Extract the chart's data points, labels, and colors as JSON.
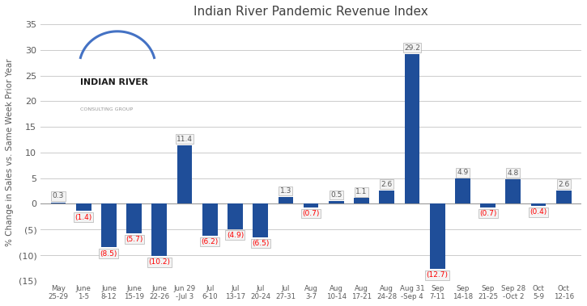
{
  "title": "Indian River Pandemic Revenue Index",
  "ylabel": "% Change in Sales vs. Same Week Prior Year",
  "categories": [
    "May\n25-29",
    "June\n1-5",
    "June\n8-12",
    "June\n15-19",
    "June\n22-26",
    "Jun 29\n-Jul 3",
    "Jul\n6-10",
    "Jul\n13-17",
    "Jul\n20-24",
    "Jul\n27-31",
    "Aug\n3-7",
    "Aug\n10-14",
    "Aug\n17-21",
    "Aug\n24-28",
    "Aug 31\n-Sep 4",
    "Sep\n7-11",
    "Sep\n14-18",
    "Sep\n21-25",
    "Sep 28\n-Oct 2",
    "Oct\n5-9",
    "Oct\n12-16"
  ],
  "values": [
    0.3,
    -1.4,
    -8.5,
    -5.7,
    -10.2,
    11.4,
    -6.2,
    -4.9,
    -6.5,
    1.3,
    -0.7,
    0.5,
    1.1,
    2.6,
    29.2,
    -12.7,
    4.9,
    -0.7,
    4.8,
    -0.4,
    2.6
  ],
  "bar_color": "#1F4E99",
  "positive_label_color": "#595959",
  "negative_label_color": "#FF0000",
  "background_color": "#FFFFFF",
  "grid_color": "#CCCCCC",
  "ylim": [
    -15,
    35
  ],
  "yticks": [
    -15,
    -10,
    -5,
    0,
    5,
    10,
    15,
    20,
    25,
    30,
    35
  ],
  "label_box_color": "#F2F2F2",
  "label_box_edge_color": "#AAAAAA",
  "arc_color": "#4472C4",
  "logo_text_color": "#1a1a1a",
  "logo_sub_color": "#999999"
}
